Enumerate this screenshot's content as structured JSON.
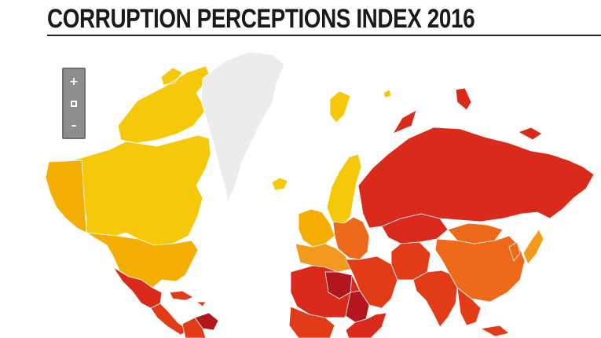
{
  "title": "CORRUPTION PERCEPTIONS INDEX 2016",
  "zoom_controls": {
    "zoom_in_icon": "plus-icon",
    "zoom_reset_icon": "reset-icon",
    "zoom_out_icon": "minus-icon",
    "zoom_in_glyph": "+",
    "zoom_out_glyph": "–"
  },
  "colors": {
    "title": "#1a1a1a",
    "very_clean": "#f5c80a",
    "clean": "#f5ae04",
    "fair": "#f39a1e",
    "moderate": "#ee6a1a",
    "corrupt": "#e23b17",
    "very_corrupt": "#d92a1c",
    "highly_corrupt": "#b3161c",
    "no_data": "#ececec"
  },
  "map_regions": [
    {
      "name": "canada",
      "tier": "very_clean"
    },
    {
      "name": "canadian-arctic",
      "tier": "very_clean"
    },
    {
      "name": "alaska-usa",
      "tier": "clean"
    },
    {
      "name": "usa",
      "tier": "clean"
    },
    {
      "name": "greenland",
      "tier": "no_data"
    },
    {
      "name": "iceland",
      "tier": "very_clean"
    },
    {
      "name": "svalbard",
      "tier": "very_clean"
    },
    {
      "name": "scandinavia",
      "tier": "very_clean"
    },
    {
      "name": "western-europe",
      "tier": "clean"
    },
    {
      "name": "southern-europe",
      "tier": "fair"
    },
    {
      "name": "eastern-europe",
      "tier": "moderate"
    },
    {
      "name": "russia",
      "tier": "very_corrupt"
    },
    {
      "name": "russian-arctic-islands",
      "tier": "very_corrupt"
    },
    {
      "name": "central-asia",
      "tier": "very_corrupt"
    },
    {
      "name": "middle-east",
      "tier": "corrupt"
    },
    {
      "name": "iran",
      "tier": "corrupt"
    },
    {
      "name": "china",
      "tier": "moderate"
    },
    {
      "name": "mongolia",
      "tier": "moderate"
    },
    {
      "name": "japan",
      "tier": "fair"
    },
    {
      "name": "korea",
      "tier": "moderate"
    },
    {
      "name": "north-africa",
      "tier": "very_corrupt"
    },
    {
      "name": "libya",
      "tier": "highly_corrupt"
    },
    {
      "name": "sudan",
      "tier": "highly_corrupt"
    },
    {
      "name": "west-africa",
      "tier": "corrupt"
    },
    {
      "name": "east-africa",
      "tier": "very_corrupt"
    },
    {
      "name": "south-asia",
      "tier": "corrupt"
    },
    {
      "name": "southeast-asia",
      "tier": "corrupt"
    },
    {
      "name": "mexico",
      "tier": "very_corrupt"
    },
    {
      "name": "central-america",
      "tier": "corrupt"
    },
    {
      "name": "caribbean",
      "tier": "corrupt"
    },
    {
      "name": "venezuela",
      "tier": "highly_corrupt"
    },
    {
      "name": "colombia",
      "tier": "corrupt"
    }
  ]
}
